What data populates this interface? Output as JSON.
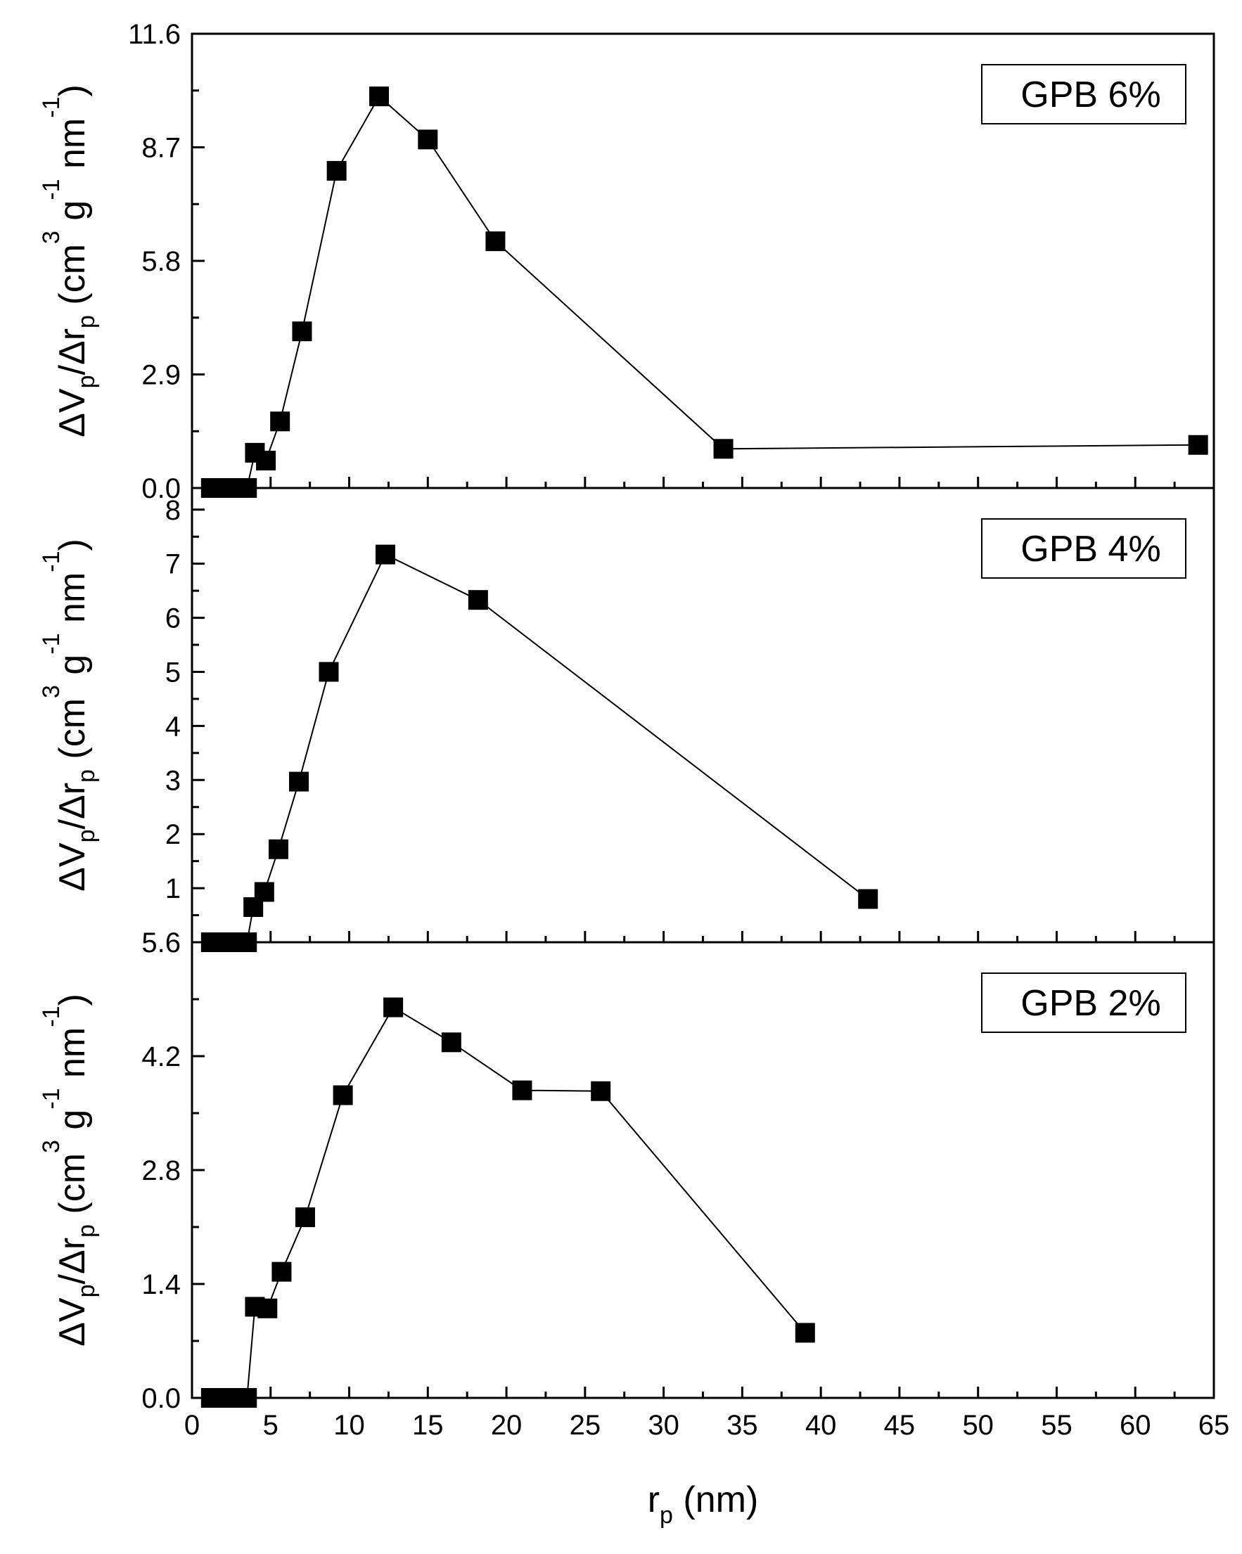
{
  "chart_data": [
    {
      "type": "line",
      "panel": "top",
      "legend": "GPB 6%",
      "legend_position": "top-right",
      "xlim": [
        0,
        65
      ],
      "ylim": [
        0,
        11.6
      ],
      "yticks": [
        0.0,
        2.9,
        5.8,
        8.7,
        11.6
      ],
      "ytick_labels": [
        "0.0",
        "2.9",
        "5.8",
        "8.7",
        "11.6"
      ],
      "ylabel": "ΔVp/Δrp (cm3 g-1 nm-1)",
      "series": [
        {
          "name": "GPB 6%",
          "x": [
            1.2,
            1.7,
            2.2,
            2.7,
            3.2,
            3.5,
            4.0,
            4.7,
            5.6,
            7.0,
            9.2,
            11.9,
            15.0,
            19.3,
            33.8,
            64.0
          ],
          "y": [
            0.0,
            0.0,
            0.0,
            0.0,
            0.0,
            0.0,
            0.9,
            0.7,
            1.7,
            4.0,
            8.1,
            10.0,
            8.9,
            6.3,
            1.0,
            1.1
          ]
        }
      ]
    },
    {
      "type": "line",
      "panel": "middle",
      "legend": "GPB 4%",
      "legend_position": "top-right",
      "xlim": [
        0,
        65
      ],
      "ylim": [
        0,
        8.4
      ],
      "yticks": [
        1,
        2,
        3,
        4,
        5,
        6,
        7,
        8
      ],
      "ytick_labels": [
        "1",
        "2",
        "3",
        "4",
        "5",
        "6",
        "7",
        "8"
      ],
      "ylabel": "ΔVp/Δrp (cm3 g-1 nm-1)",
      "series": [
        {
          "name": "GPB 4%",
          "x": [
            1.2,
            1.7,
            2.2,
            2.7,
            3.2,
            3.5,
            3.9,
            4.6,
            5.5,
            6.8,
            8.7,
            12.3,
            18.2,
            43.0
          ],
          "y": [
            0.0,
            0.0,
            0.0,
            0.0,
            0.0,
            0.0,
            0.65,
            0.93,
            1.72,
            2.97,
            5.0,
            7.17,
            6.33,
            0.8
          ]
        }
      ]
    },
    {
      "type": "line",
      "panel": "bottom",
      "legend": "GPB 2%",
      "legend_position": "top-right",
      "xlim": [
        0,
        65
      ],
      "ylim": [
        0,
        5.6
      ],
      "yticks": [
        0.0,
        1.4,
        2.8,
        4.2,
        5.6
      ],
      "ytick_labels": [
        "0.0",
        "1.4",
        "2.8",
        "4.2",
        "5.6"
      ],
      "ylabel": "ΔVp/Δrp (cm3 g-1 nm-1)",
      "xlabel": "rp (nm)",
      "xticks": [
        0,
        5,
        10,
        15,
        20,
        25,
        30,
        35,
        40,
        45,
        50,
        55,
        60,
        65
      ],
      "xtick_labels": [
        "0",
        "5",
        "10",
        "15",
        "20",
        "25",
        "30",
        "35",
        "40",
        "45",
        "50",
        "55",
        "60",
        "65"
      ],
      "series": [
        {
          "name": "GPB 2%",
          "x": [
            1.2,
            1.7,
            2.2,
            2.7,
            3.2,
            3.5,
            4.0,
            4.8,
            5.7,
            7.2,
            9.6,
            12.8,
            16.5,
            21.0,
            26.0,
            39.0
          ],
          "y": [
            0.0,
            0.0,
            0.0,
            0.0,
            0.0,
            0.0,
            1.12,
            1.1,
            1.55,
            2.22,
            3.72,
            4.8,
            4.37,
            3.78,
            3.77,
            0.8
          ]
        }
      ]
    }
  ]
}
